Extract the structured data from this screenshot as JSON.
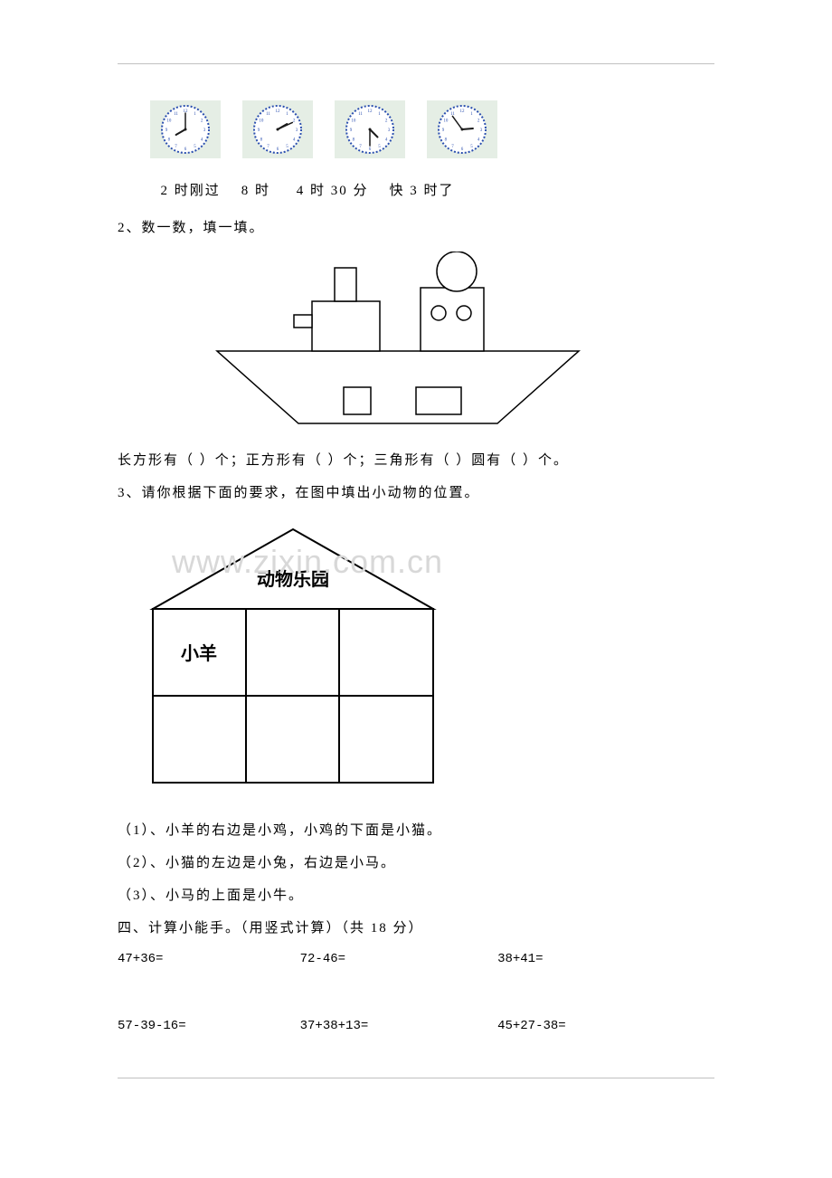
{
  "clocks": [
    {
      "hourAngle": 240,
      "minuteAngle": 0
    },
    {
      "hourAngle": 60,
      "minuteAngle": 65
    },
    {
      "hourAngle": 135,
      "minuteAngle": 180
    },
    {
      "hourAngle": 85,
      "minuteAngle": 324
    }
  ],
  "clockLabelsLine": "  2 时刚过    8 时     4 时 30 分    快 3 时了",
  "q2_title": "2、数一数，填一填。",
  "q2_shapes_line": "长方形有（   ）个；正方形有（   ）个；三角形有（   ）圆有（   ）个。",
  "q3_title": "3、请你根据下面的要求，在图中填出小动物的位置。",
  "house_title": "动物乐园",
  "house_first_cell": "小羊",
  "q3_items": [
    "（1）、小羊的右边是小鸡，小鸡的下面是小猫。",
    "（2）、小猫的左边是小兔，右边是小马。",
    "（3）、小马的上面是小牛。"
  ],
  "section4_title": "四、计算小能手。（用竖式计算）（共 18 分）",
  "calc_rows": [
    "47+36=                  72-46=                    38+41=",
    "57-39-16=               37+38+13=                 45+27-38="
  ],
  "watermark_text": "www.zixin.com.cn",
  "colors": {
    "clock_bg": "#e5eee5",
    "clock_rim": "#2b4fb0",
    "clock_tick": "#2b4fb0",
    "clock_hand": "#1a1a1a",
    "line_color": "#000000"
  }
}
